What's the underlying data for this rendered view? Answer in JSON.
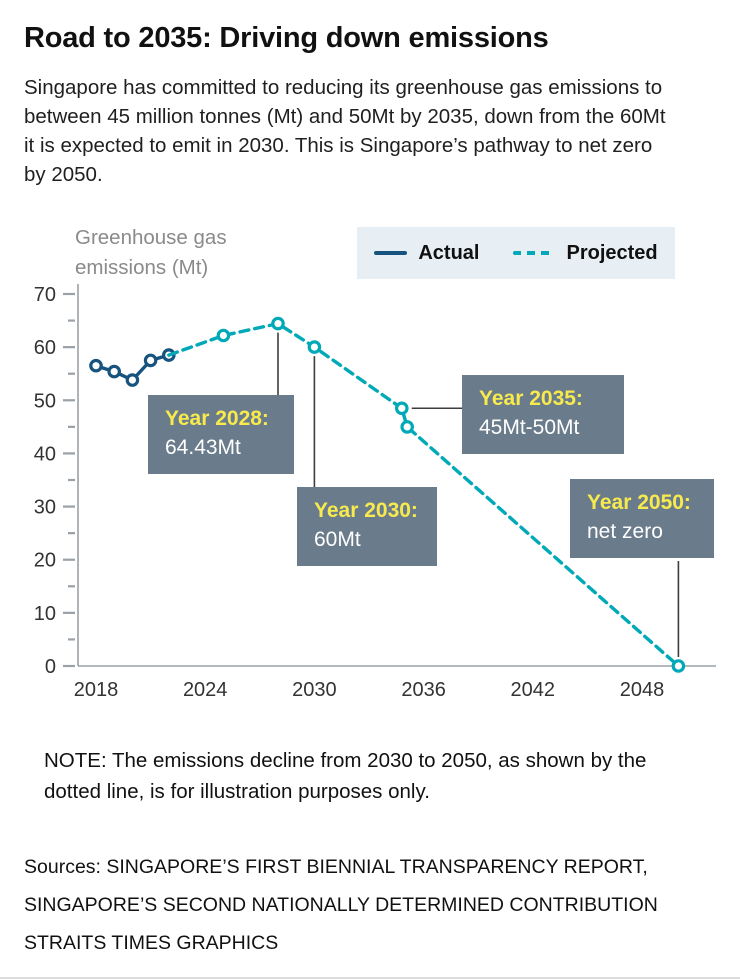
{
  "header": {
    "title": "Road to 2035: Driving down emissions",
    "intro": "Singapore has committed to reducing its greenhouse gas emissions to between 45 million tonnes (Mt) and 50Mt by 2035, down from the 60Mt it is expected to emit in 2030. This is Singapore’s pathway to net zero by 2050."
  },
  "legend": {
    "actual": "Actual",
    "projected": "Projected"
  },
  "chart_data": {
    "type": "line",
    "title": "",
    "xlabel": "",
    "ylabel": "Greenhouse gas emissions (Mt)",
    "ylim": [
      0,
      70
    ],
    "xlim": [
      2017.5,
      2051
    ],
    "y_ticks": [
      0,
      10,
      20,
      30,
      40,
      50,
      60,
      70
    ],
    "y_tick_minor_step": 5,
    "x_ticks": [
      2018,
      2024,
      2030,
      2036,
      2042,
      2048
    ],
    "grid": false,
    "legend_position": "top-right",
    "axis_color": "#9aa1a7",
    "series": [
      {
        "name": "Actual",
        "style": "solid",
        "color": "#16537e",
        "points": [
          [
            2018,
            56.5
          ],
          [
            2019,
            55.4
          ],
          [
            2020,
            53.8
          ],
          [
            2021,
            57.5
          ],
          [
            2022,
            58.5
          ]
        ]
      },
      {
        "name": "Projected",
        "style": "dashed",
        "color": "#00a9b8",
        "points": [
          [
            2022,
            58.5
          ],
          [
            2025,
            62.2
          ],
          [
            2028,
            64.43
          ],
          [
            2030,
            60
          ],
          [
            2034.8,
            48.5
          ],
          [
            2035.1,
            45
          ],
          [
            2050,
            0
          ]
        ],
        "marker_points": [
          [
            2025,
            62.2
          ],
          [
            2028,
            64.43
          ],
          [
            2030,
            60
          ],
          [
            2034.8,
            48.5
          ],
          [
            2035.1,
            45
          ],
          [
            2050,
            0
          ]
        ]
      }
    ],
    "annotations": [
      {
        "label": "Year 2028:",
        "value": "64.43Mt",
        "anchor": [
          2028,
          64.43
        ]
      },
      {
        "label": "Year 2030:",
        "value": "60Mt",
        "anchor": [
          2030,
          60
        ]
      },
      {
        "label": "Year 2035:",
        "value": "45Mt-50Mt",
        "anchor": [
          2034.8,
          48.5
        ]
      },
      {
        "label": "Year 2050:",
        "value": "net zero",
        "anchor": [
          2050,
          0
        ]
      }
    ]
  },
  "note": "NOTE: The emissions decline from 2030 to 2050, as shown by the dotted line, is for illustration purposes only.",
  "sources": [
    "Sources: SINGAPORE’S FIRST BIENNIAL TRANSPARENCY REPORT,",
    "SINGAPORE’S SECOND NATIONALLY DETERMINED CONTRIBUTION",
    "STRAITS TIMES GRAPHICS"
  ],
  "colors": {
    "actual": "#16537e",
    "projected": "#00a9b8",
    "callout_bg": "#6a7b8b",
    "callout_label": "#f7ea4e",
    "legend_bg": "#e8eff4"
  }
}
